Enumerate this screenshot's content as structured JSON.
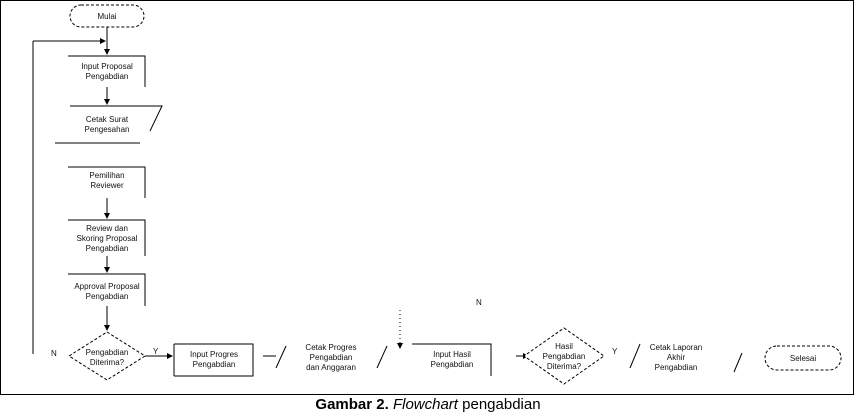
{
  "nodes": {
    "mulai": "Mulai",
    "input_proposal": [
      "Input Proposal",
      "Pengabdian"
    ],
    "cetak_surat": [
      "Cetak Surat",
      "Pengesahan"
    ],
    "pemilihan_reviewer": [
      "Pemilihan",
      "Reviewer"
    ],
    "review_skoring": [
      "Review dan",
      "Skoring Proposal",
      "Pengabdian"
    ],
    "approval": [
      "Approval Proposal",
      "Pengabdian"
    ],
    "pengabdian_diterima": [
      "Pengabdian",
      "Diterima?"
    ],
    "input_progres": [
      "Input Progres",
      "Pengabdian"
    ],
    "cetak_progres": [
      "Cetak Progres",
      "Pengabdian",
      "dan Anggaran"
    ],
    "input_hasil": [
      "Input Hasil",
      "Pengabdian"
    ],
    "hasil_diterima": [
      "Hasil",
      "Pengabdian",
      "Diterima?"
    ],
    "cetak_laporan": [
      "Cetak Laporan",
      "Akhir",
      "Pengabdian"
    ],
    "selesai": "Selesai"
  },
  "edge_labels": {
    "n_left": "N",
    "y_right": "Y",
    "n_top": "N",
    "y_hasil": "Y"
  },
  "caption": {
    "prefix": "Gambar 2.",
    "italic": "Flowchart",
    "suffix": "pengabdian"
  }
}
